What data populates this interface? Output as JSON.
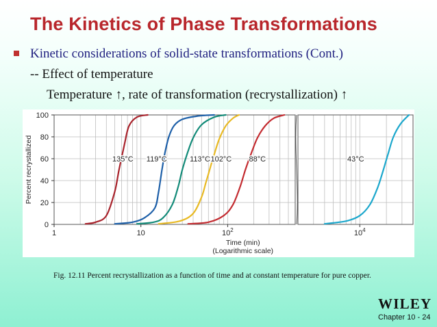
{
  "slide": {
    "title": "The Kinetics of Phase Transformations",
    "bullet": "Kinetic considerations of solid-state transformations (Cont.)",
    "sub1": "-- Effect of temperature",
    "sub2": "Temperature ↑, rate of transformation (recrystallization) ↑",
    "caption": "Fig. 12.11 Percent recrystallization as a function of time and at constant temperature for pure copper.",
    "publisher": "WILEY",
    "footer": "Chapter 10 - 24"
  },
  "chart_data": {
    "type": "line",
    "xlabel": "Time (min)",
    "xlabel_note": "(Logarithmic scale)",
    "ylabel": "Percent recrystallized",
    "x_scale": "log",
    "xlim": [
      1,
      40000
    ],
    "x_break": [
      600,
      2000
    ],
    "ylim": [
      0,
      100
    ],
    "y_ticks": [
      0,
      20,
      40,
      60,
      80,
      100
    ],
    "x_tick_labels": [
      {
        "x": 1,
        "label": "1"
      },
      {
        "x": 10,
        "label": "10"
      },
      {
        "x": 100,
        "label": "10",
        "exp": "2"
      },
      {
        "x": 10000,
        "label": "10",
        "exp": "4"
      }
    ],
    "grid": true,
    "series": [
      {
        "name": "135°C",
        "color": "#a8222b",
        "label_at": [
          6.2,
          60
        ],
        "x": [
          2.3,
          3,
          4,
          5,
          5.6,
          6.5,
          7.3,
          9,
          12
        ],
        "y": [
          0.5,
          2,
          8,
          30,
          50,
          74,
          90,
          98,
          100
        ]
      },
      {
        "name": "119°C",
        "color": "#1d5fa8",
        "label_at": [
          15.2,
          60
        ],
        "x": [
          5,
          8,
          11,
          14.5,
          16,
          17.5,
          19,
          21,
          24,
          30,
          45,
          70
        ],
        "y": [
          0.5,
          2,
          6,
          15,
          30,
          50,
          66,
          80,
          90,
          96,
          99,
          100
        ]
      },
      {
        "name": "113°C",
        "color": "#128a78",
        "label_at": [
          48,
          60
        ],
        "x": [
          9,
          14,
          18,
          23,
          27,
          30,
          34,
          40,
          50,
          70,
          95
        ],
        "y": [
          0.5,
          2,
          6,
          18,
          35,
          50,
          64,
          79,
          91,
          98,
          100
        ]
      },
      {
        "name": "102°C",
        "color": "#e8b922",
        "label_at": [
          84,
          60
        ],
        "x": [
          16,
          28,
          40,
          50,
          56,
          62,
          70,
          80,
          95,
          115,
          135
        ],
        "y": [
          0.5,
          3,
          10,
          25,
          38,
          50,
          64,
          78,
          90,
          97,
          100
        ]
      },
      {
        "name": "88°C",
        "color": "#c32b30",
        "label_at": [
          220,
          60
        ],
        "x": [
          35,
          60,
          90,
          115,
          140,
          160,
          185,
          220,
          270,
          340,
          450
        ],
        "y": [
          0.5,
          2,
          8,
          18,
          35,
          50,
          64,
          79,
          90,
          97,
          100
        ]
      },
      {
        "name": "43°C",
        "color": "#1ba7cc",
        "label_at": [
          9000,
          60
        ],
        "x": [
          4000,
          7000,
          10000,
          13000,
          16000,
          18500,
          21000,
          24000,
          29000,
          36000
        ],
        "y": [
          0.5,
          3,
          8,
          18,
          34,
          50,
          65,
          80,
          92,
          100
        ]
      }
    ]
  }
}
